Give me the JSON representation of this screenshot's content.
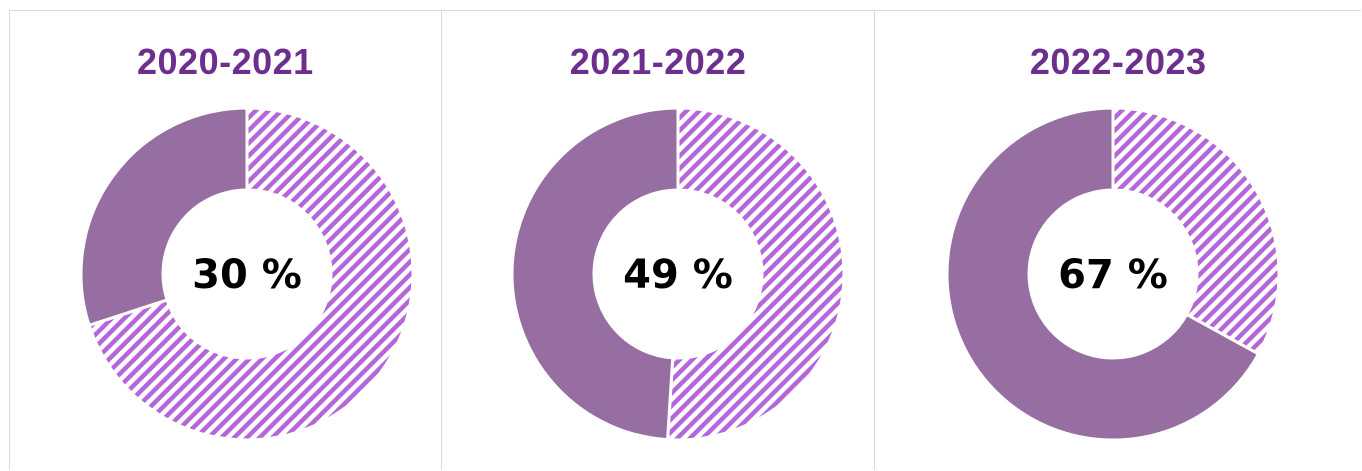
{
  "colors": {
    "title": "#6d2f8e",
    "solid": "#966ea2",
    "stripe": "#b566d8",
    "panel_border": "#e3d3ea"
  },
  "chart_data": [
    {
      "type": "pie",
      "variant": "donut",
      "title": "2020-2021",
      "center_label": "30 %",
      "slices": [
        {
          "value": 30,
          "fill": "solid"
        },
        {
          "value": 70,
          "fill": "striped"
        }
      ]
    },
    {
      "type": "pie",
      "variant": "donut",
      "title": "2021-2022",
      "center_label": "49 %",
      "slices": [
        {
          "value": 49,
          "fill": "solid"
        },
        {
          "value": 51,
          "fill": "striped"
        }
      ]
    },
    {
      "type": "pie",
      "variant": "donut",
      "title": "2022-2023",
      "center_label": "67 %",
      "slices": [
        {
          "value": 67,
          "fill": "solid"
        },
        {
          "value": 33,
          "fill": "striped"
        }
      ]
    }
  ]
}
